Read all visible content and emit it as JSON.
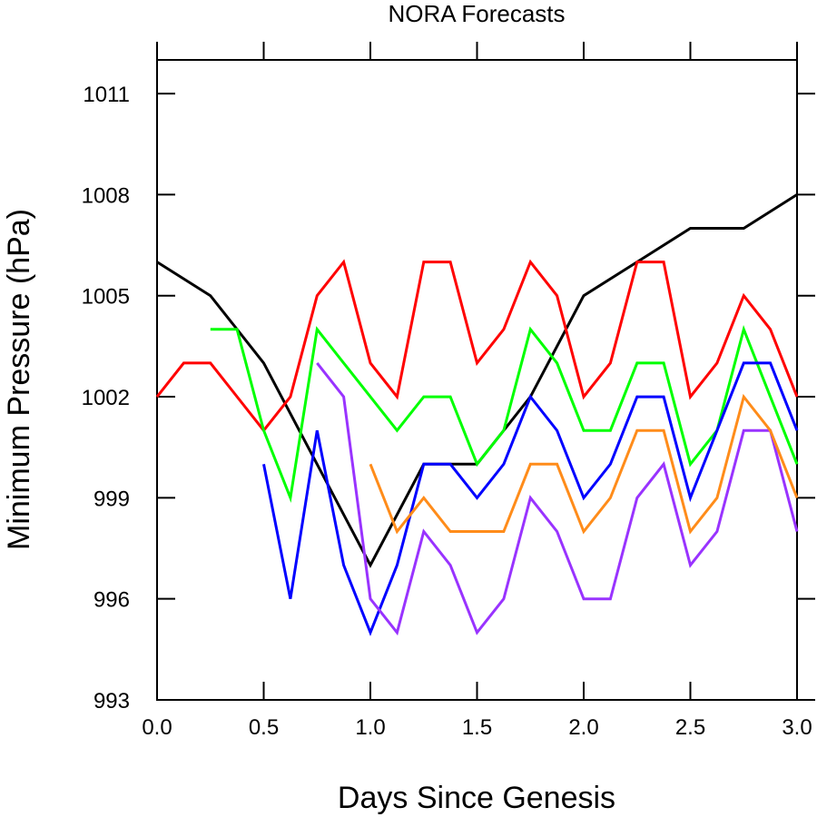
{
  "chart_data": {
    "type": "line",
    "title": "NORA Forecasts",
    "xlabel": "Days Since Genesis",
    "ylabel": "Minimum Pressure (hPa)",
    "xlim": [
      0,
      3
    ],
    "ylim": [
      993,
      1012
    ],
    "xticks": [
      0,
      0.5,
      1,
      1.5,
      2,
      2.5,
      3
    ],
    "xtick_labels": [
      "0.0",
      "0.5",
      "1.0",
      "1.5",
      "2.0",
      "2.5",
      "3.0"
    ],
    "yticks": [
      993,
      996,
      999,
      1002,
      1005,
      1008,
      1011
    ],
    "ytick_labels": [
      "993",
      "996",
      "999",
      "1002",
      "1005",
      "1008",
      "1011"
    ],
    "grid": false,
    "legend": "none",
    "series": [
      {
        "color": "#000000",
        "x": [
          0,
          0.25,
          0.5,
          1.0,
          1.25,
          1.5,
          1.75,
          2.0,
          2.25,
          2.5,
          2.75,
          3.0
        ],
        "y": [
          1006,
          1005,
          1003,
          997,
          1000,
          1000,
          1002,
          1005,
          1006,
          1007,
          1007,
          1008
        ]
      },
      {
        "color": "#ff0000",
        "x": [
          0,
          0.125,
          0.25,
          0.5,
          0.625,
          0.75,
          0.875,
          1.0,
          1.125,
          1.25,
          1.375,
          1.5,
          1.625,
          1.75,
          1.875,
          2.0,
          2.125,
          2.25,
          2.375,
          2.5,
          2.625,
          2.75,
          2.875,
          3.0
        ],
        "y": [
          1002,
          1003,
          1003,
          1001,
          1002,
          1005,
          1006,
          1003,
          1002,
          1006,
          1006,
          1003,
          1004,
          1006,
          1005,
          1002,
          1003,
          1006,
          1006,
          1002,
          1003,
          1005,
          1004,
          1002
        ]
      },
      {
        "color": "#00ff00",
        "x": [
          0.25,
          0.375,
          0.5,
          0.625,
          0.75,
          0.875,
          1.0,
          1.125,
          1.25,
          1.375,
          1.5,
          1.625,
          1.75,
          1.875,
          2.0,
          2.125,
          2.25,
          2.375,
          2.5,
          2.625,
          2.75,
          2.875,
          3.0
        ],
        "y": [
          1004,
          1004,
          1001,
          999,
          1004,
          1003,
          1002,
          1001,
          1002,
          1002,
          1000,
          1001,
          1004,
          1003,
          1001,
          1001,
          1003,
          1003,
          1000,
          1001,
          1004,
          1002,
          1000
        ]
      },
      {
        "color": "#0000ff",
        "x": [
          0.5,
          0.625,
          0.75,
          0.875,
          1.0,
          1.125,
          1.25,
          1.375,
          1.5,
          1.625,
          1.75,
          1.875,
          2.0,
          2.125,
          2.25,
          2.375,
          2.5,
          2.625,
          2.75,
          2.875,
          3.0
        ],
        "y": [
          1000,
          996,
          1001,
          997,
          995,
          997,
          1000,
          1000,
          999,
          1000,
          1002,
          1001,
          999,
          1000,
          1002,
          1002,
          999,
          1001,
          1003,
          1003,
          1001
        ]
      },
      {
        "color": "#9933ff",
        "x": [
          0.75,
          0.875,
          1.0,
          1.125,
          1.25,
          1.375,
          1.5,
          1.625,
          1.75,
          1.875,
          2.0,
          2.125,
          2.25,
          2.375,
          2.5,
          2.625,
          2.75,
          2.875,
          3.0
        ],
        "y": [
          1003,
          1002,
          996,
          995,
          998,
          997,
          995,
          996,
          999,
          998,
          996,
          996,
          999,
          1000,
          997,
          998,
          1001,
          1001,
          998
        ]
      },
      {
        "color": "#ff8c1a",
        "x": [
          1.0,
          1.125,
          1.25,
          1.375,
          1.5,
          1.625,
          1.75,
          1.875,
          2.0,
          2.125,
          2.25,
          2.375,
          2.5,
          2.625,
          2.75,
          2.875,
          3.0
        ],
        "y": [
          1000,
          998,
          999,
          998,
          998,
          998,
          1000,
          1000,
          998,
          999,
          1001,
          1001,
          998,
          999,
          1002,
          1001,
          999
        ]
      }
    ]
  }
}
